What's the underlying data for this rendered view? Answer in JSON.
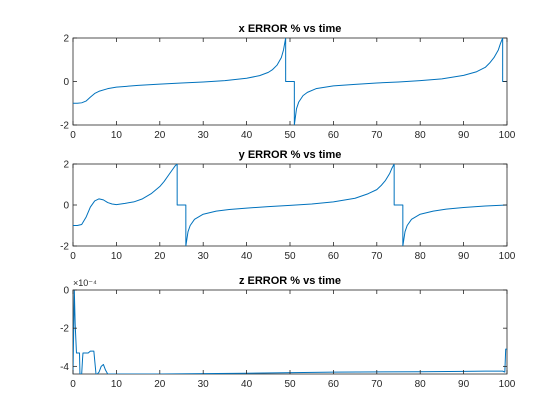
{
  "figure": {
    "background": "#ffffff",
    "axes_color": "#262626",
    "line_color": "#0072bd"
  },
  "chart_data": [
    {
      "type": "line",
      "title": "x ERROR % vs time",
      "xlabel": "",
      "ylabel": "",
      "xlim": [
        0,
        100
      ],
      "ylim": [
        -2,
        2
      ],
      "xticks": [
        "0",
        "10",
        "20",
        "30",
        "40",
        "50",
        "60",
        "70",
        "80",
        "90",
        "100"
      ],
      "yticks": [
        "2",
        "0",
        "-2"
      ],
      "ytick_values": [
        2,
        0,
        -2
      ],
      "exponent_label": "",
      "grid": false,
      "series": [
        {
          "x": [
            0,
            1,
            2,
            3,
            4,
            5,
            6,
            8,
            10,
            15,
            20,
            25,
            30,
            35,
            40,
            43,
            45,
            46,
            47,
            48,
            48.5,
            49,
            49,
            50,
            51,
            51,
            51.5,
            52,
            53,
            54,
            56,
            60,
            65,
            70,
            75,
            80,
            85,
            90,
            93,
            95,
            96,
            97,
            98,
            98.5,
            99,
            99,
            100
          ],
          "y": [
            -1.0,
            -1.0,
            -0.98,
            -0.9,
            -0.72,
            -0.55,
            -0.45,
            -0.33,
            -0.26,
            -0.18,
            -0.12,
            -0.07,
            -0.02,
            0.04,
            0.15,
            0.27,
            0.42,
            0.55,
            0.75,
            1.1,
            1.45,
            2.0,
            0.0,
            0.0,
            0.0,
            -2.0,
            -1.25,
            -0.95,
            -0.65,
            -0.5,
            -0.33,
            -0.2,
            -0.13,
            -0.07,
            -0.02,
            0.04,
            0.12,
            0.28,
            0.45,
            0.65,
            0.85,
            1.1,
            1.45,
            1.75,
            2.0,
            0.0,
            0.0
          ]
        }
      ]
    },
    {
      "type": "line",
      "title": "y ERROR % vs time",
      "xlabel": "",
      "ylabel": "",
      "xlim": [
        0,
        100
      ],
      "ylim": [
        -2,
        2
      ],
      "xticks": [
        "0",
        "10",
        "20",
        "30",
        "40",
        "50",
        "60",
        "70",
        "80",
        "90",
        "100"
      ],
      "yticks": [
        "2",
        "0",
        "-2"
      ],
      "ytick_values": [
        2,
        0,
        -2
      ],
      "exponent_label": "",
      "grid": false,
      "series": [
        {
          "x": [
            0,
            1,
            2,
            3,
            4,
            5,
            6,
            7,
            8,
            9,
            10,
            12,
            14,
            16,
            18,
            20,
            21,
            22,
            23,
            23.5,
            24,
            24,
            25,
            26,
            26,
            26.5,
            27,
            28,
            30,
            33,
            36,
            40,
            45,
            50,
            55,
            60,
            65,
            68,
            70,
            71,
            72,
            73,
            73.5,
            74,
            74,
            75,
            76,
            76,
            76.5,
            77,
            78,
            80,
            83,
            86,
            90,
            95,
            100
          ],
          "y": [
            -1.0,
            -1.0,
            -0.95,
            -0.6,
            -0.1,
            0.2,
            0.3,
            0.25,
            0.12,
            0.05,
            0.02,
            0.08,
            0.15,
            0.3,
            0.55,
            0.9,
            1.15,
            1.45,
            1.75,
            1.9,
            2.0,
            0.0,
            0.0,
            0.0,
            -2.0,
            -1.3,
            -1.0,
            -0.7,
            -0.45,
            -0.3,
            -0.22,
            -0.15,
            -0.08,
            -0.02,
            0.05,
            0.15,
            0.33,
            0.55,
            0.75,
            0.95,
            1.2,
            1.55,
            1.8,
            2.0,
            0.0,
            0.0,
            0.0,
            -2.0,
            -1.3,
            -1.0,
            -0.7,
            -0.45,
            -0.3,
            -0.2,
            -0.12,
            -0.05,
            0.0
          ]
        }
      ]
    },
    {
      "type": "line",
      "title": "z ERROR % vs  time",
      "xlabel": "",
      "ylabel": "",
      "xlim": [
        0,
        100
      ],
      "ylim": [
        -0.00044,
        0
      ],
      "xticks": [
        "0",
        "10",
        "20",
        "30",
        "40",
        "50",
        "60",
        "70",
        "80",
        "90",
        "100"
      ],
      "yticks": [
        "0",
        "-2",
        "-4"
      ],
      "ytick_values": [
        0,
        -0.0002,
        -0.0004
      ],
      "exponent_label": "×10⁻⁴",
      "grid": false,
      "series": [
        {
          "x": [
            0,
            0.3,
            0.5,
            0.8,
            1.2,
            1.5,
            1.6,
            1.8,
            2.0,
            2.2,
            2.3,
            3.5,
            4.0,
            4.8,
            5.3,
            5.6,
            6.0,
            6.5,
            7.0,
            7.5,
            8.0,
            10,
            20,
            40,
            60,
            80,
            90,
            95,
            99,
            99.5,
            99.7,
            100
          ],
          "y": [
            -0.00044,
            0.0,
            -0.00018,
            -0.00033,
            -0.00033,
            -0.00033,
            -0.00044,
            -0.00044,
            -0.00044,
            -0.00036,
            -0.00033,
            -0.00033,
            -0.00032,
            -0.00032,
            -0.00044,
            -0.00044,
            -0.00043,
            -0.0004,
            -0.00039,
            -0.00042,
            -0.00044,
            -0.00044,
            -0.00044,
            -0.000436,
            -0.00043,
            -0.000428,
            -0.000426,
            -0.000425,
            -0.000425,
            -0.00043,
            -0.00031,
            -0.00031
          ]
        }
      ]
    }
  ]
}
